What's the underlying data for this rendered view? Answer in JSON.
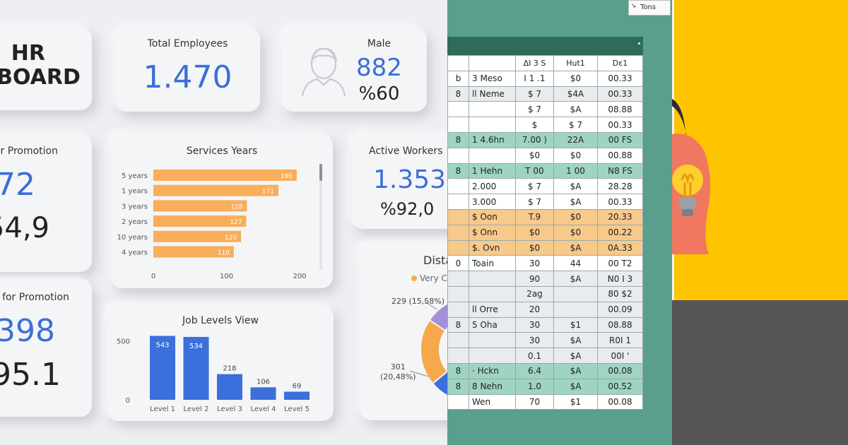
{
  "dashboard": {
    "hr_title": [
      "HR",
      "HBOARD"
    ],
    "total_employees": {
      "label": "Total Employees",
      "value": "1.470"
    },
    "male": {
      "label": "Male",
      "value": "882",
      "percent": "%60"
    },
    "promotion": {
      "label": "or Promotion",
      "value": "72",
      "sub": "54,9"
    },
    "not_promotion": {
      "label": "for Promotion",
      "value": "398",
      "sub": "95.1"
    },
    "active_workers": {
      "label": "Active Workers",
      "value": "1.353",
      "percent": "%92,0"
    },
    "distance": {
      "title": "Dista",
      "legend": "Very Cl",
      "label1": "229 (15,58%)",
      "label2_line1": "301",
      "label2_line2": "(20,48%)"
    },
    "services_title": "Services Years",
    "job_levels_title": "Job Levels View"
  },
  "chart_data": [
    {
      "type": "bar",
      "orientation": "horizontal",
      "title": "Services Years",
      "categories": [
        "5 years",
        "1 years",
        "3 years",
        "2 years",
        "10 years",
        "4 years"
      ],
      "values": [
        196,
        171,
        128,
        127,
        120,
        110
      ],
      "xlim": [
        0,
        200
      ],
      "xticks": [
        "0",
        "100",
        "200"
      ],
      "color": "#f9ae5a"
    },
    {
      "type": "bar",
      "orientation": "vertical",
      "title": "Job Levels View",
      "categories": [
        "Level 1",
        "Level 2",
        "Level 3",
        "Level 4",
        "Level 5"
      ],
      "values": [
        543,
        534,
        218,
        106,
        69
      ],
      "ylim": [
        0,
        600
      ],
      "yticks": [
        "0",
        "500"
      ],
      "color": "#3a6fdc"
    },
    {
      "type": "pie",
      "title": "Dista",
      "segments": [
        {
          "label": "229 (15,58%)",
          "value": 15.58,
          "color": "#a390d6"
        },
        {
          "label": "301 (20,48%)",
          "value": 20.48,
          "color": "#f6a94b"
        },
        {
          "label": "",
          "value": 63.94,
          "color": "#3a6fdc"
        }
      ]
    }
  ],
  "spreadsheet": {
    "topbar_label": "Tons",
    "headers": [
      "",
      "",
      "ΔI 3 S",
      "Hut1",
      "Dε1"
    ],
    "rows": [
      {
        "style": "white",
        "cells": [
          "b",
          "3 Meso",
          "I 1 .1",
          "$0",
          "00.33"
        ]
      },
      {
        "style": "grey",
        "cells": [
          "8",
          "ll Neme",
          "$ 7",
          "$4A",
          "00.33"
        ]
      },
      {
        "style": "white",
        "cells": [
          "",
          "",
          "$ 7",
          "$A",
          "08.88"
        ]
      },
      {
        "style": "white",
        "cells": [
          "",
          "",
          "$",
          "$ 7",
          "00.33"
        ]
      },
      {
        "style": "green",
        "cells": [
          "8",
          "1 4.6hn",
          "7.00  )",
          "22A",
          "00 FS"
        ]
      },
      {
        "style": "white",
        "cells": [
          "",
          "",
          "$0",
          "$0",
          "00.88"
        ]
      },
      {
        "style": "green",
        "cells": [
          "8",
          "1 Hehn",
          "T 00",
          "1 00",
          "N8 FS"
        ]
      },
      {
        "style": "white",
        "cells": [
          "",
          "2.000",
          "$ 7",
          "$A",
          "28.28"
        ]
      },
      {
        "style": "white",
        "cells": [
          "",
          "3.000",
          "$ 7",
          "$A",
          "00.33"
        ]
      },
      {
        "style": "orange",
        "cells": [
          "",
          "$ Oon",
          "T.9",
          "$0",
          "20.33"
        ]
      },
      {
        "style": "orange",
        "cells": [
          "",
          "$ Onn",
          "$0",
          "$0",
          "00.22"
        ]
      },
      {
        "style": "orange",
        "cells": [
          "",
          "$. Ovn",
          "$0",
          "$A",
          "0A.33"
        ]
      },
      {
        "style": "white",
        "cells": [
          "0",
          "Toain",
          "30",
          "44",
          "00 T2"
        ]
      },
      {
        "style": "grey",
        "cells": [
          "",
          "",
          "90",
          "$A",
          "N0 I 3"
        ]
      },
      {
        "style": "grey",
        "cells": [
          "",
          "",
          "2ag",
          "",
          "80 $2"
        ]
      },
      {
        "style": "grey",
        "cells": [
          "",
          "ll  Orre",
          "20",
          "",
          "00.09"
        ]
      },
      {
        "style": "grey",
        "cells": [
          "8",
          "5  Oha",
          "30",
          "$1",
          "08.88"
        ]
      },
      {
        "style": "grey",
        "cells": [
          "",
          "",
          "30",
          "$A",
          "R0I  1"
        ]
      },
      {
        "style": "grey",
        "cells": [
          "",
          "",
          "0.1",
          "$A",
          "00I  '"
        ]
      },
      {
        "style": "green",
        "cells": [
          "8",
          "· Hckn",
          "6.4",
          "$A",
          "00.08"
        ]
      },
      {
        "style": "green",
        "cells": [
          "8",
          "8  Nehn",
          "1.0",
          "$A",
          "00.52"
        ]
      },
      {
        "style": "white",
        "cells": [
          "",
          "Wen",
          "70",
          "$1",
          "00.08"
        ]
      }
    ]
  }
}
